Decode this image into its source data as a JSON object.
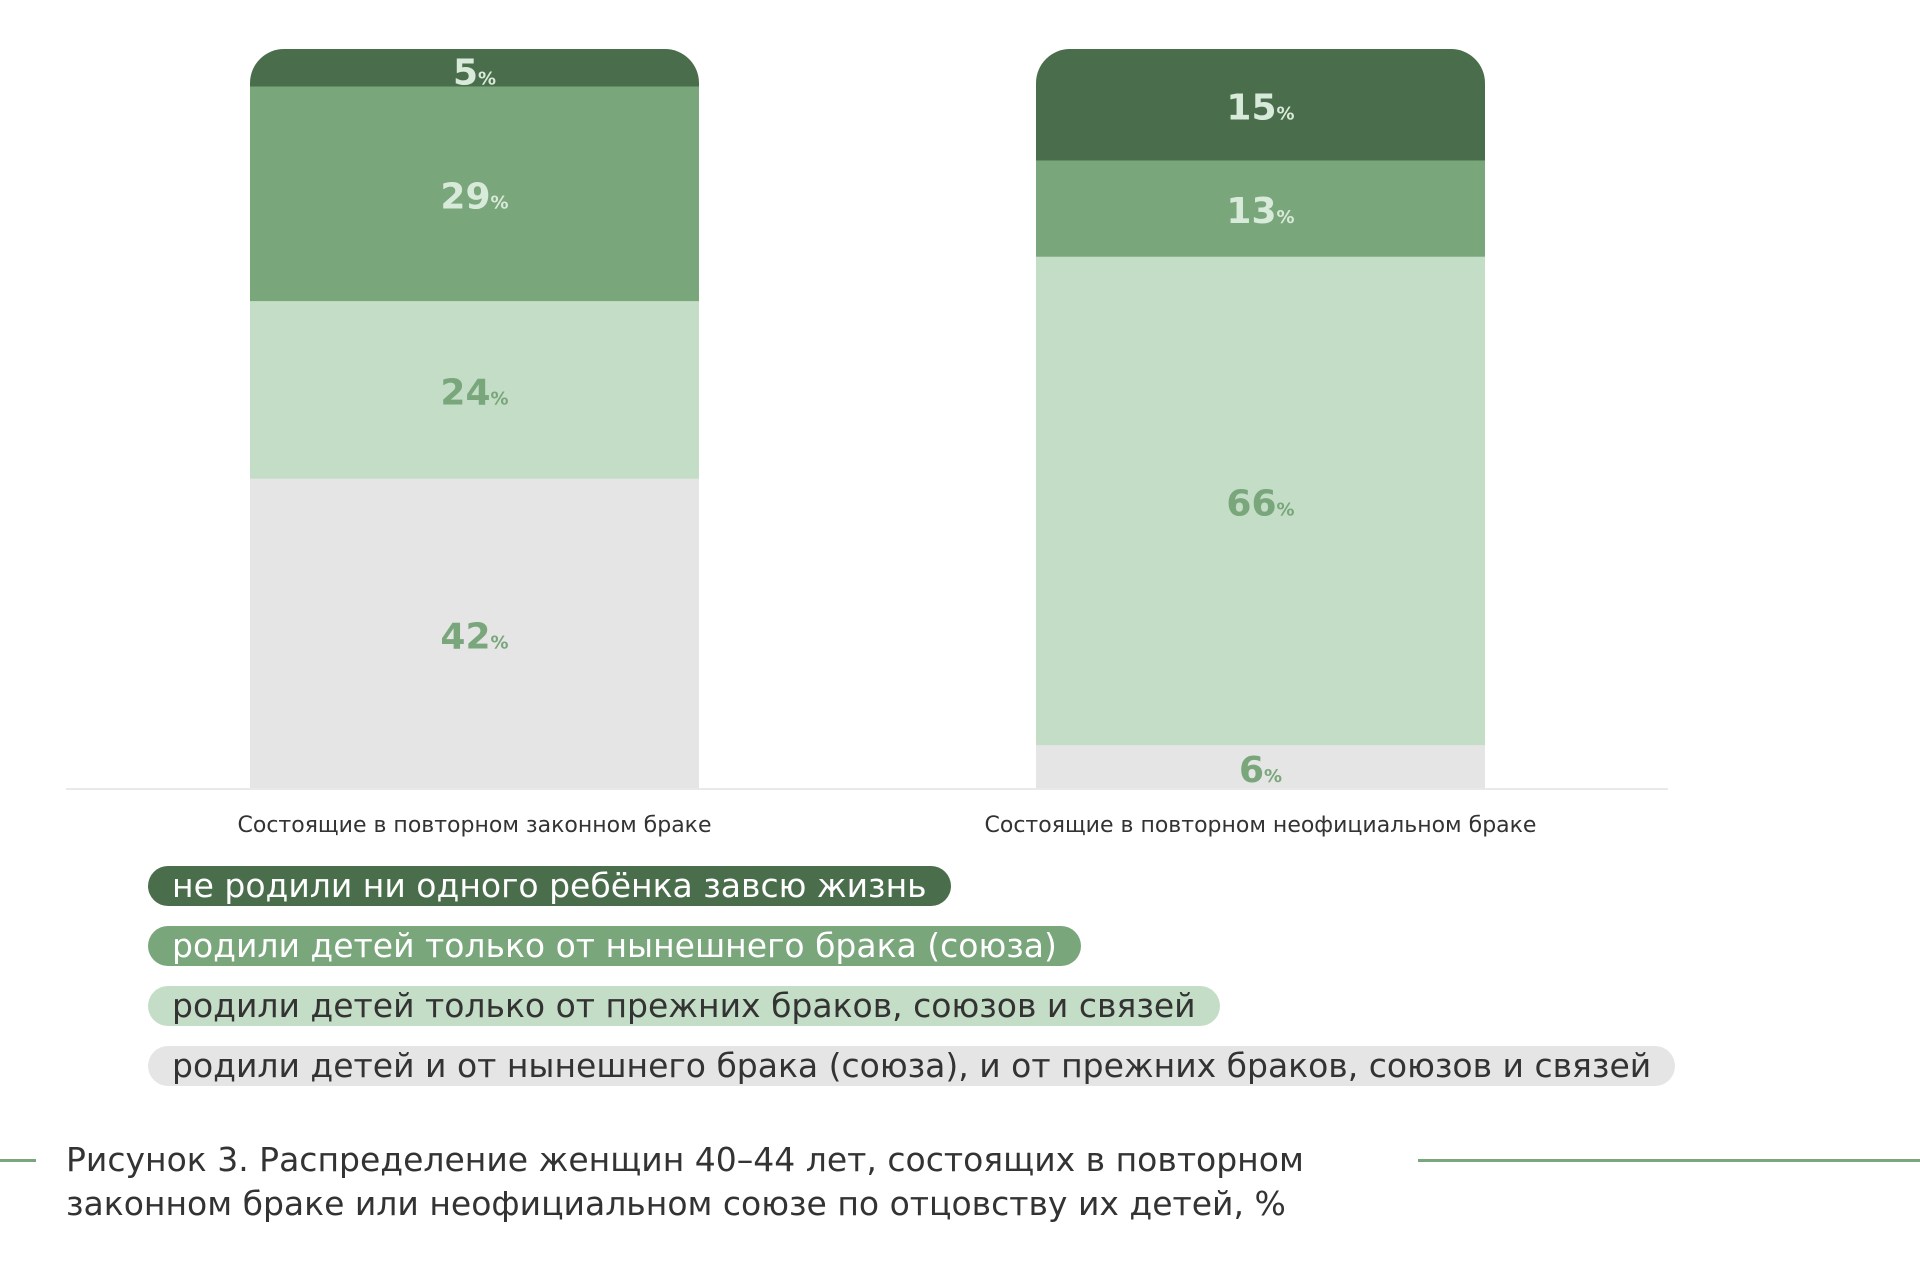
{
  "chart_data": {
    "type": "bar",
    "stacked": true,
    "percent_stacked": true,
    "categories": [
      "Состоящие в повторном законном браке",
      "Состоящие в повторном неофициальном браке"
    ],
    "series": [
      {
        "name": "родили детей и от нынешнего брака (союза), и от прежних браков, союзов и связей",
        "values": [
          42,
          6
        ],
        "color": "#e5e5e5",
        "label_color": "#79a67b"
      },
      {
        "name": "родили детей только от прежних браков, союзов и связей",
        "values": [
          24,
          66
        ],
        "color": "#c4ddc6",
        "label_color": "#79a67b"
      },
      {
        "name": "родили детей только от нынешнего брака (союза)",
        "values": [
          29,
          13
        ],
        "color": "#79a67b",
        "label_color": "#d8ead9"
      },
      {
        "name": "не родили ни одного ребёнка  завсю жизнь",
        "values": [
          5,
          15
        ],
        "color": "#4a6e4c",
        "label_color": "#d8ead9"
      }
    ],
    "value_suffix": "%",
    "legend_order": [
      3,
      2,
      1,
      0
    ],
    "legend_position": "bottom-left",
    "grid": false
  },
  "caption": {
    "line1": "Рисунок 3. Распределение женщин 40–44 лет, состоящих в повторном",
    "line2": "законном браке или неофициальном союзе по отцовству их детей, %"
  }
}
